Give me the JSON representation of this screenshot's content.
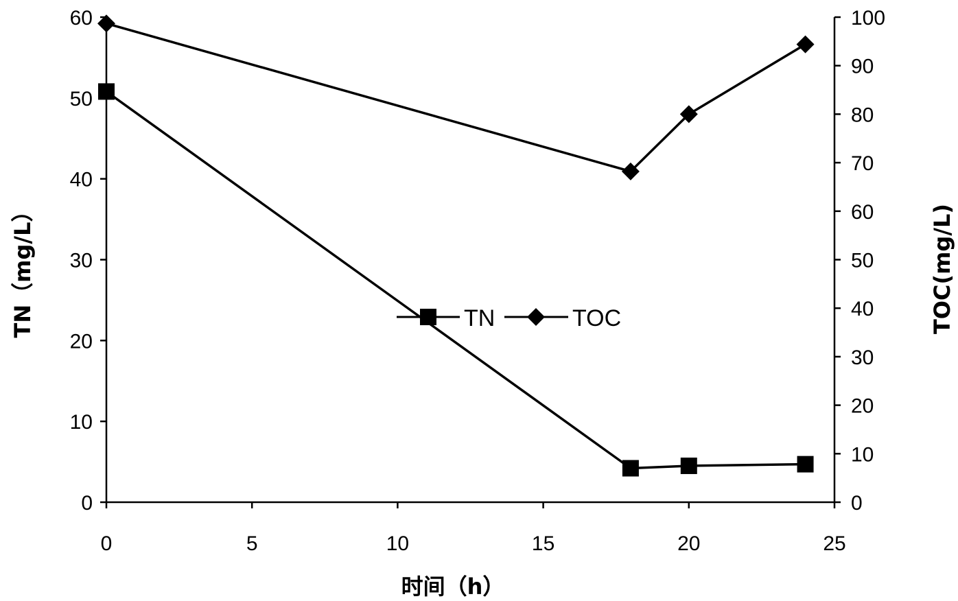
{
  "chart_data": {
    "type": "line",
    "xlabel": "时间（h）",
    "ylabel_left": "TN（mg/L）",
    "ylabel_right": "TOC(mg/L)",
    "x_ticks": [
      "0",
      "5",
      "10",
      "15",
      "20",
      "25"
    ],
    "y_left_ticks": [
      "0",
      "10",
      "20",
      "30",
      "40",
      "50",
      "60"
    ],
    "y_right_ticks": [
      "0",
      "10",
      "20",
      "30",
      "40",
      "50",
      "60",
      "70",
      "80",
      "90",
      "100"
    ],
    "xlim": [
      0,
      25
    ],
    "ylim_left": [
      0,
      60
    ],
    "ylim_right": [
      0,
      100
    ],
    "grid": false,
    "legend_position": "center",
    "series": [
      {
        "name": "TN",
        "axis": "left",
        "marker": "square",
        "color": "#000000",
        "x": [
          0,
          18,
          20,
          24
        ],
        "y": [
          50.8,
          4.2,
          4.5,
          4.7
        ]
      },
      {
        "name": "TOC",
        "axis": "right",
        "marker": "diamond",
        "color": "#000000",
        "x": [
          0,
          18,
          20,
          24
        ],
        "y": [
          98.7,
          68.2,
          80.0,
          94.4
        ]
      }
    ]
  }
}
